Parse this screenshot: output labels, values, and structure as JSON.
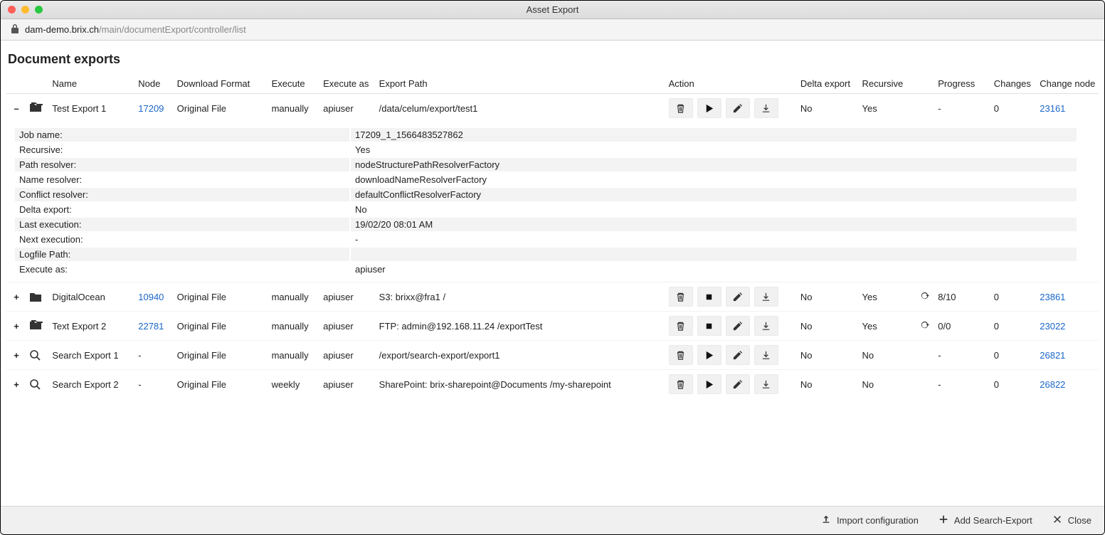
{
  "window": {
    "title": "Asset Export"
  },
  "address": {
    "host": "dam-demo.brix.ch",
    "path": "/main/documentExport/controller/list"
  },
  "page": {
    "heading": "Document exports"
  },
  "columns": {
    "name": "Name",
    "node": "Node",
    "downloadFormat": "Download Format",
    "execute": "Execute",
    "executeAs": "Execute as",
    "exportPath": "Export Path",
    "action": "Action",
    "deltaExport": "Delta export",
    "recursive": "Recursive",
    "progress": "Progress",
    "changes": "Changes",
    "changeNode": "Change node"
  },
  "rows": [
    {
      "expanded": true,
      "iconStacked": true,
      "rowIcon": "folder",
      "name": "Test Export 1",
      "node": "17209",
      "downloadFormat": "Original File",
      "execute": "manually",
      "executeAs": "apiuser",
      "exportPath": "/data/celum/export/test1",
      "action2": "play",
      "deltaExport": "No",
      "recursive": "Yes",
      "spinner": false,
      "progress": "-",
      "changes": "0",
      "changeNode": "23161",
      "details": [
        {
          "k": "Job name:",
          "v": "17209_1_1566483527862"
        },
        {
          "k": "Recursive:",
          "v": "Yes"
        },
        {
          "k": "Path resolver:",
          "v": "nodeStructurePathResolverFactory"
        },
        {
          "k": "Name resolver:",
          "v": "downloadNameResolverFactory"
        },
        {
          "k": "Conflict resolver:",
          "v": "defaultConflictResolverFactory"
        },
        {
          "k": "Delta export:",
          "v": "No"
        },
        {
          "k": "Last execution:",
          "v": "19/02/20 08:01 AM"
        },
        {
          "k": "Next execution:",
          "v": "-"
        },
        {
          "k": "Logfile Path:",
          "v": ""
        },
        {
          "k": "Execute as:",
          "v": "apiuser"
        }
      ]
    },
    {
      "expanded": false,
      "iconStacked": false,
      "rowIcon": "folder",
      "name": "DigitalOcean",
      "node": "10940",
      "downloadFormat": "Original File",
      "execute": "manually",
      "executeAs": "apiuser",
      "exportPath": "S3: brixx@fra1 /",
      "action2": "stop",
      "deltaExport": "No",
      "recursive": "Yes",
      "spinner": true,
      "progress": "8/10",
      "changes": "0",
      "changeNode": "23861"
    },
    {
      "expanded": false,
      "iconStacked": true,
      "rowIcon": "folder",
      "name": "Text Export 2",
      "node": "22781",
      "downloadFormat": "Original File",
      "execute": "manually",
      "executeAs": "apiuser",
      "exportPath": "FTP: admin@192.168.11.24 /exportTest",
      "action2": "stop",
      "deltaExport": "No",
      "recursive": "Yes",
      "spinner": true,
      "progress": "0/0",
      "changes": "0",
      "changeNode": "23022"
    },
    {
      "expanded": false,
      "iconStacked": false,
      "rowIcon": "search",
      "name": "Search Export 1",
      "node": "-",
      "downloadFormat": "Original File",
      "execute": "manually",
      "executeAs": "apiuser",
      "exportPath": "/export/search-export/export1",
      "action2": "play",
      "deltaExport": "No",
      "recursive": "No",
      "spinner": false,
      "progress": "-",
      "changes": "0",
      "changeNode": "26821"
    },
    {
      "expanded": false,
      "iconStacked": false,
      "rowIcon": "search",
      "name": "Search Export 2",
      "node": "-",
      "downloadFormat": "Original File",
      "execute": "weekly",
      "executeAs": "apiuser",
      "exportPath": "SharePoint: brix-sharepoint@Documents /my-sharepoint",
      "action2": "play",
      "deltaExport": "No",
      "recursive": "No",
      "spinner": false,
      "progress": "-",
      "changes": "0",
      "changeNode": "26822"
    }
  ],
  "footer": {
    "import": "Import configuration",
    "addSearch": "Add Search-Export",
    "close": "Close"
  },
  "colors": {
    "link": "#1a66c9",
    "icon": "#333",
    "actionBg": "#f1f1f1"
  },
  "columnWidths": {
    "toggle": 28,
    "icon": 32,
    "name": 120,
    "node": 54,
    "downloadFormat": 132,
    "execute": 72,
    "executeAs": 78,
    "exportPath": 404,
    "action": 184,
    "deltaExport": 86,
    "recursive": 80,
    "progressIcon": 26,
    "progress": 78,
    "changes": 64,
    "changeNode": 86
  }
}
